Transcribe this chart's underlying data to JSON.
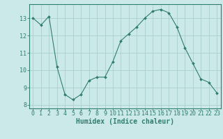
{
  "x": [
    0,
    1,
    2,
    3,
    4,
    5,
    6,
    7,
    8,
    9,
    10,
    11,
    12,
    13,
    14,
    15,
    16,
    17,
    18,
    19,
    20,
    21,
    22,
    23
  ],
  "y": [
    13.0,
    12.6,
    13.1,
    10.2,
    8.6,
    8.3,
    8.6,
    9.4,
    9.6,
    9.6,
    10.5,
    11.7,
    12.1,
    12.5,
    13.0,
    13.4,
    13.5,
    13.3,
    12.5,
    11.3,
    10.4,
    9.5,
    9.3,
    8.7
  ],
  "line_color": "#2e7d6e",
  "marker": "D",
  "marker_size": 2.0,
  "bg_color": "#cce9e9",
  "grid_color": "#aacfcf",
  "xlabel": "Humidex (Indice chaleur)",
  "ylim": [
    7.8,
    13.8
  ],
  "xlim": [
    -0.5,
    23.5
  ],
  "yticks": [
    8,
    9,
    10,
    11,
    12,
    13
  ],
  "xticks": [
    0,
    1,
    2,
    3,
    4,
    5,
    6,
    7,
    8,
    9,
    10,
    11,
    12,
    13,
    14,
    15,
    16,
    17,
    18,
    19,
    20,
    21,
    22,
    23
  ],
  "label_fontsize": 7.0,
  "tick_fontsize": 6.0
}
